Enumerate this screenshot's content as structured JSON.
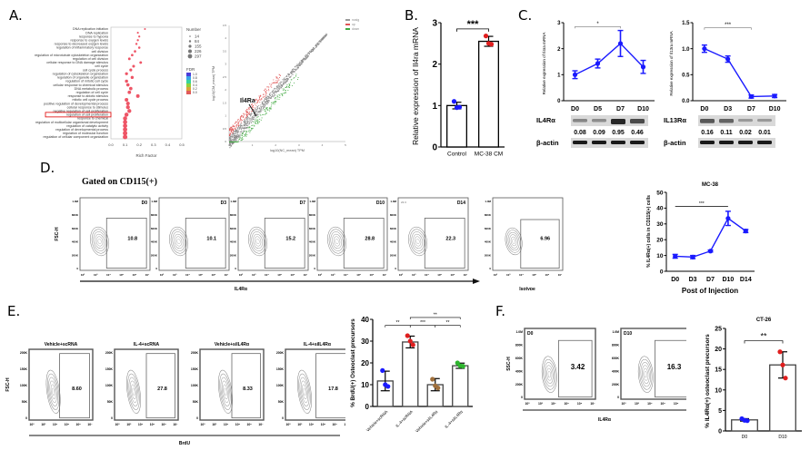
{
  "panel_labels": {
    "A": "A.",
    "B": "B.",
    "C": "C.",
    "D": "D.",
    "E": "E.",
    "F": "F."
  },
  "colors": {
    "blue": "#1a1aff",
    "red": "#e01e1e",
    "green": "#2db52d",
    "brown": "#a0703c",
    "gray": "#888888",
    "highlight": "#e00000"
  },
  "chart_data": [
    {
      "id": "A-go",
      "type": "scatter",
      "title": "",
      "xlabel": "Rich Factor",
      "xlim": [
        0.0,
        0.5
      ],
      "xticks": [
        "0.0",
        "0.1",
        "0.2",
        "0.3",
        "0.4",
        "0.5"
      ],
      "terms": [
        "DNA replication initiation",
        "DNA replication",
        "response to hypoxia",
        "response to oxygen levels",
        "response to decreased oxygen levels",
        "regulation of inflammatory response",
        "cell division",
        "regulation of microtubule cytoskeleton organization",
        "regulation of cell division",
        "cellular response to DNA damage stimulus",
        "cell cycle",
        "cell cycle process",
        "regulation of cytoskeleton organization",
        "regulation of organelle organization",
        "regulation of mitotic cell cycle",
        "cellular response to chemical stimulus",
        "DNA metabolic process",
        "regulation of cell cycle",
        "response to abiotic stimulus",
        "mitotic cell cycle process",
        "positive regulation of developmental process",
        "cellular response to stimulus",
        "negative regulation of cell proliferation",
        "regulation of cell proliferation",
        "response to chemical",
        "regulation of multicellular organismal development",
        "regulation of catalytic activity",
        "regulation of developmental process",
        "regulation of molecular function",
        "regulation of cellular component organization"
      ],
      "rich_factor": [
        0.24,
        0.19,
        0.2,
        0.19,
        0.18,
        0.2,
        0.17,
        0.15,
        0.13,
        0.21,
        0.16,
        0.14,
        0.11,
        0.15,
        0.11,
        0.12,
        0.14,
        0.13,
        0.19,
        0.11,
        0.12,
        0.12,
        0.13,
        0.11,
        0.1,
        0.1,
        0.1,
        0.1,
        0.1,
        0.1
      ],
      "highlighted_term": "regulation of cell proliferation",
      "legend_number_title": "Number",
      "legend_number": [
        "14",
        "84",
        "155",
        "226",
        "297"
      ],
      "legend_fdr_title": "FDR",
      "legend_fdr": [
        "1.0",
        "0.8",
        "0.6",
        "0.4",
        "0.2",
        "0.0"
      ]
    },
    {
      "id": "A-volcano",
      "type": "scatter",
      "xlabel": "log10(NC_mean) TPM",
      "ylabel": "log10(CM_mean) TPM",
      "xlim": [
        0,
        5
      ],
      "ylim": [
        0,
        4.5
      ],
      "xticks": [
        "0",
        "1",
        "2",
        "3",
        "4",
        "5"
      ],
      "yticks": [
        "0",
        "0.5",
        "1",
        "1.5",
        "2",
        "2.5",
        "3",
        "3.5",
        "4",
        "4.5"
      ],
      "legend": [
        "nosig",
        "up",
        "down"
      ],
      "annotation": "Il4Ra"
    },
    {
      "id": "B",
      "type": "bar",
      "ylabel": "Relative expression of Il4ra mRNA",
      "categories": [
        "Control",
        "MC-38 CM"
      ],
      "values": [
        1.0,
        2.55
      ],
      "errors": [
        0.08,
        0.12
      ],
      "points": [
        [
          1.1,
          0.95,
          0.96
        ],
        [
          2.68,
          2.5,
          2.48
        ]
      ],
      "ylim": [
        0,
        3
      ],
      "yticks": [
        "0",
        "1",
        "2",
        "3"
      ],
      "significance": "***"
    },
    {
      "id": "C-left",
      "type": "line",
      "ylabel": "Relative expression of Il4ra mRNA",
      "categories": [
        "D0",
        "D5",
        "D7",
        "D10"
      ],
      "values": [
        1.0,
        1.43,
        2.2,
        1.3
      ],
      "errors": [
        0.15,
        0.17,
        0.5,
        0.25
      ],
      "ylim": [
        0,
        3
      ],
      "yticks": [
        "0",
        "1",
        "2",
        "3"
      ],
      "significance": "*",
      "blot_protein": "IL4Rα",
      "blot_values": [
        "0.08",
        "0.09",
        "0.95",
        "0.46"
      ],
      "blot_loading": "β-actin"
    },
    {
      "id": "C-right",
      "type": "line",
      "ylabel": "Relative expression of Il13ra mRNA",
      "categories": [
        "D0",
        "D3",
        "D7",
        "D10"
      ],
      "values": [
        1.0,
        0.8,
        0.08,
        0.09
      ],
      "errors": [
        0.07,
        0.06,
        0.03,
        0.03
      ],
      "ylim": [
        0,
        1.5
      ],
      "yticks": [
        "0.0",
        "0.5",
        "1.0",
        "1.5"
      ],
      "significance": "***",
      "blot_protein": "IL13Rα",
      "blot_values": [
        "0.16",
        "0.11",
        "0.02",
        "0.01"
      ],
      "blot_loading": "β-actin"
    },
    {
      "id": "D-flow",
      "type": "table",
      "title": "Gated on CD115(+)",
      "ylabel": "FSC-H",
      "xlabel": "IL4Rα",
      "yticks": [
        "0",
        "200K",
        "400K",
        "600K",
        "800K",
        "1.0M"
      ],
      "panels": [
        {
          "label": "D0",
          "value": "10.8"
        },
        {
          "label": "D3",
          "value": "10.1"
        },
        {
          "label": "D7",
          "value": "15.2"
        },
        {
          "label": "D10",
          "value": "28.8"
        },
        {
          "label": "D14",
          "value": "22.3",
          "corner": "22.3"
        }
      ],
      "isotype": {
        "label": "Isotype",
        "value": "6.96"
      }
    },
    {
      "id": "D-line",
      "type": "line",
      "title": "MC-38",
      "xlabel": "Post of Injection",
      "ylabel": "% IL4Rα(+) cells in CD115(+) cells",
      "categories": [
        "D0",
        "D3",
        "D7",
        "D10",
        "D14"
      ],
      "values": [
        9.5,
        9.0,
        12.8,
        33.5,
        25.5
      ],
      "errors": [
        1.2,
        1.0,
        0.6,
        4.5,
        1.0
      ],
      "ylim": [
        0,
        50
      ],
      "yticks": [
        "0",
        "10",
        "20",
        "30",
        "40",
        "50"
      ],
      "significance": "***"
    },
    {
      "id": "E-flow",
      "type": "table",
      "ylabel": "FSC-H",
      "xlabel": "BrdU",
      "yticks": [
        "0",
        "50K",
        "100K",
        "150K",
        "200K"
      ],
      "panels": [
        {
          "label": "Vehicle+scRNA",
          "value": "8.60"
        },
        {
          "label": "IL-4+scRNA",
          "value": "27.8"
        },
        {
          "label": "Vehicle+siIL4Rα",
          "value": "8.33"
        },
        {
          "label": "IL-4+siIL4Rα",
          "value": "17.8"
        }
      ]
    },
    {
      "id": "E-bar",
      "type": "bar",
      "ylabel": "% BrdU(+) Osteoclast precursors",
      "categories": [
        "Vehicle+scRNA",
        "IL-4+scRNA",
        "Vehicle+siIL4Rα",
        "IL-4+siIL4Rα"
      ],
      "values": [
        11.7,
        29.6,
        10.0,
        18.7
      ],
      "errors": [
        4.5,
        2.7,
        2.8,
        1.2
      ],
      "points": [
        [
          16.5,
          10,
          9.2
        ],
        [
          32.5,
          30,
          28.3
        ],
        [
          12.5,
          9.5,
          8.5
        ],
        [
          20,
          18.7,
          18.5
        ]
      ],
      "point_colors": [
        "#1a1aff",
        "#e01e1e",
        "#a0703c",
        "#2db52d"
      ],
      "ylim": [
        0,
        40
      ],
      "yticks": [
        "0",
        "10",
        "20",
        "30",
        "40"
      ],
      "significance": [
        "**",
        "***",
        "**",
        "**"
      ]
    },
    {
      "id": "F-flow",
      "type": "table",
      "ylabel": "SSC-H",
      "xlabel": "IL4Rα",
      "yticks": [
        "0",
        "200K",
        "400K",
        "600K",
        "800K",
        "1.0M"
      ],
      "panels": [
        {
          "label": "D0",
          "value": "3.42"
        },
        {
          "label": "D10",
          "value": "16.3"
        }
      ]
    },
    {
      "id": "F-bar",
      "type": "bar",
      "title": "CT-26",
      "ylabel": "% IL4Rα(+) osteoclast precursors",
      "categories": [
        "D0",
        "D10"
      ],
      "values": [
        2.7,
        16.1
      ],
      "errors": [
        0.3,
        3.2
      ],
      "points": [
        [
          3.0,
          2.6,
          2.5
        ],
        [
          19.3,
          16.1,
          12.9
        ]
      ],
      "ylim": [
        0,
        25
      ],
      "yticks": [
        "0",
        "5",
        "10",
        "15",
        "20",
        "25"
      ],
      "significance": "**"
    }
  ],
  "flow_axis_ticks": [
    "10²",
    "10³",
    "10⁴",
    "10⁵",
    "10⁶",
    "10⁷"
  ]
}
